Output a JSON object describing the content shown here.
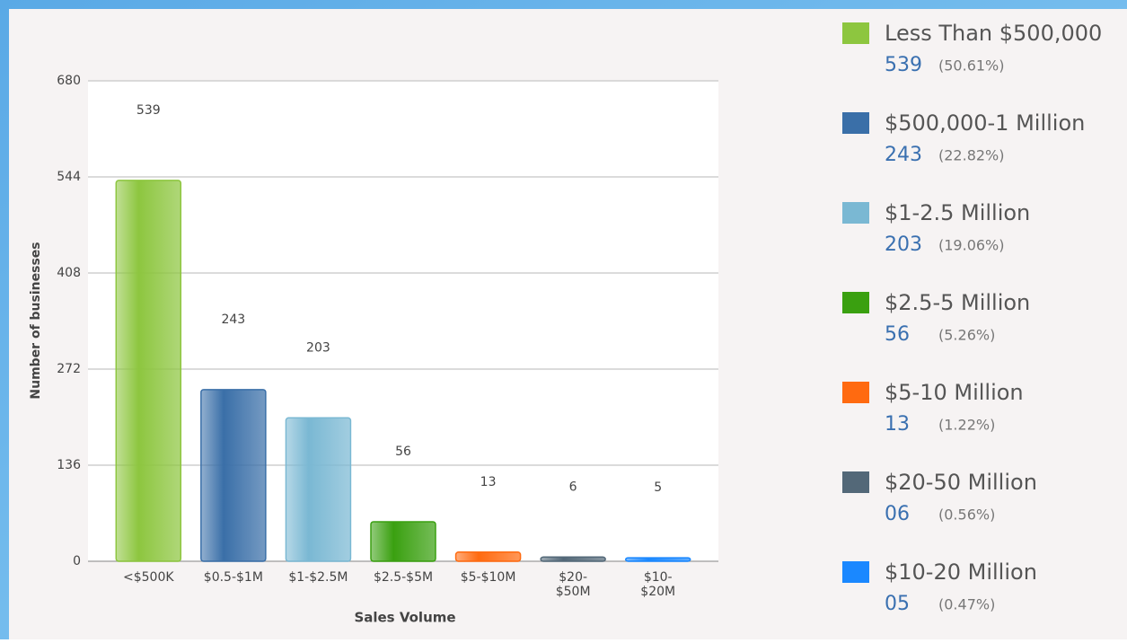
{
  "chart_data": {
    "type": "bar",
    "x_label": "Sales Volume",
    "y_label": "Number of businesses",
    "categories": [
      "<$500K",
      "$0.5-$1M",
      "$1-$2.5M",
      "$2.5-$5M",
      "$5-$10M",
      "$20-\n$50M",
      "$10-\n$20M"
    ],
    "values": [
      539,
      243,
      203,
      56,
      13,
      6,
      5
    ],
    "colors": [
      "#8dc63f",
      "#3a6fa8",
      "#7ab8d3",
      "#3aa010",
      "#ff6a10",
      "#536878",
      "#1a88ff"
    ],
    "ylim": [
      0,
      680
    ],
    "yticks": [
      0,
      136,
      272,
      408,
      544,
      680
    ],
    "grid": true,
    "legend": {
      "names": [
        "Less Than $500,000",
        "$500,000-1 Million",
        "$1-2.5 Million",
        "$2.5-5 Million",
        "$5-10 Million",
        "$20-50 Million",
        "$10-20 Million"
      ],
      "value_labels": [
        "539",
        "243",
        "203",
        "56",
        "13",
        "06",
        "05"
      ],
      "percent_labels": [
        "(50.61%)",
        "(22.82%)",
        "(19.06%)",
        "(5.26%)",
        "(1.22%)",
        "(0.56%)",
        "(0.47%)"
      ]
    }
  }
}
